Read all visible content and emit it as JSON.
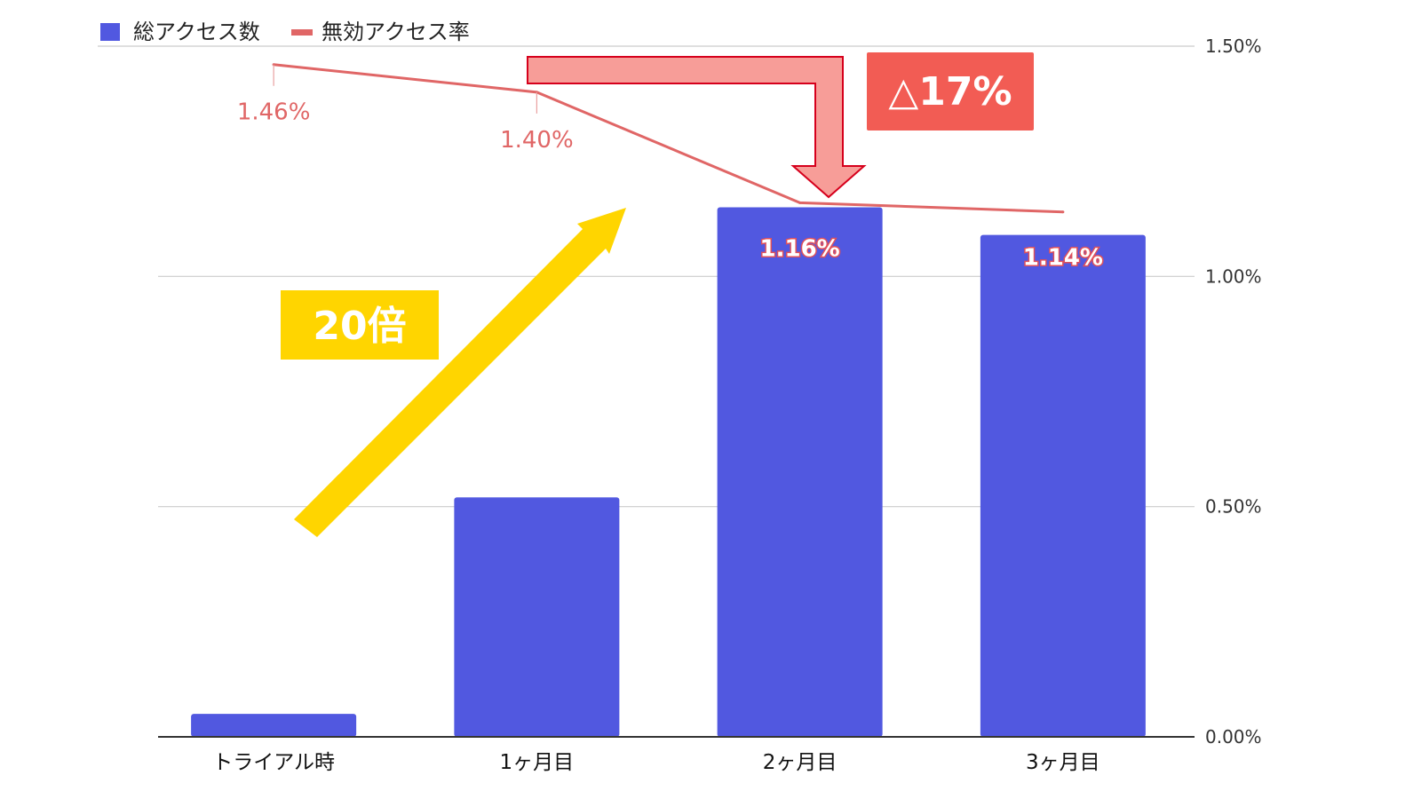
{
  "chart_data": {
    "type": "bar",
    "categories": [
      "トライアル時",
      "1ヶ月目",
      "2ヶ月目",
      "3ヶ月目"
    ],
    "series": [
      {
        "name": "総アクセス数",
        "kind": "bar",
        "axis": "relative",
        "color": "#5158e0",
        "values": [
          0.05,
          0.52,
          1.15,
          1.09
        ]
      },
      {
        "name": "無効アクセス率",
        "kind": "line",
        "axis": "right",
        "color": "#e06666",
        "values": [
          1.46,
          1.4,
          1.16,
          1.14
        ],
        "labels": [
          "1.46%",
          "1.40%",
          "1.16%",
          "1.14%"
        ]
      }
    ],
    "y_right": {
      "ticks": [
        0,
        0.5,
        1.0,
        1.5
      ],
      "tick_labels": [
        "0.00%",
        "0.50%",
        "1.00%",
        "1.50%"
      ],
      "range": [
        0,
        1.5
      ]
    },
    "grid": true,
    "legend": "top-left"
  },
  "annotations": {
    "growth_label": "20倍",
    "growth_color": "#ffd500",
    "decrease_label": "△17%",
    "decrease_color": "#f25c54"
  }
}
